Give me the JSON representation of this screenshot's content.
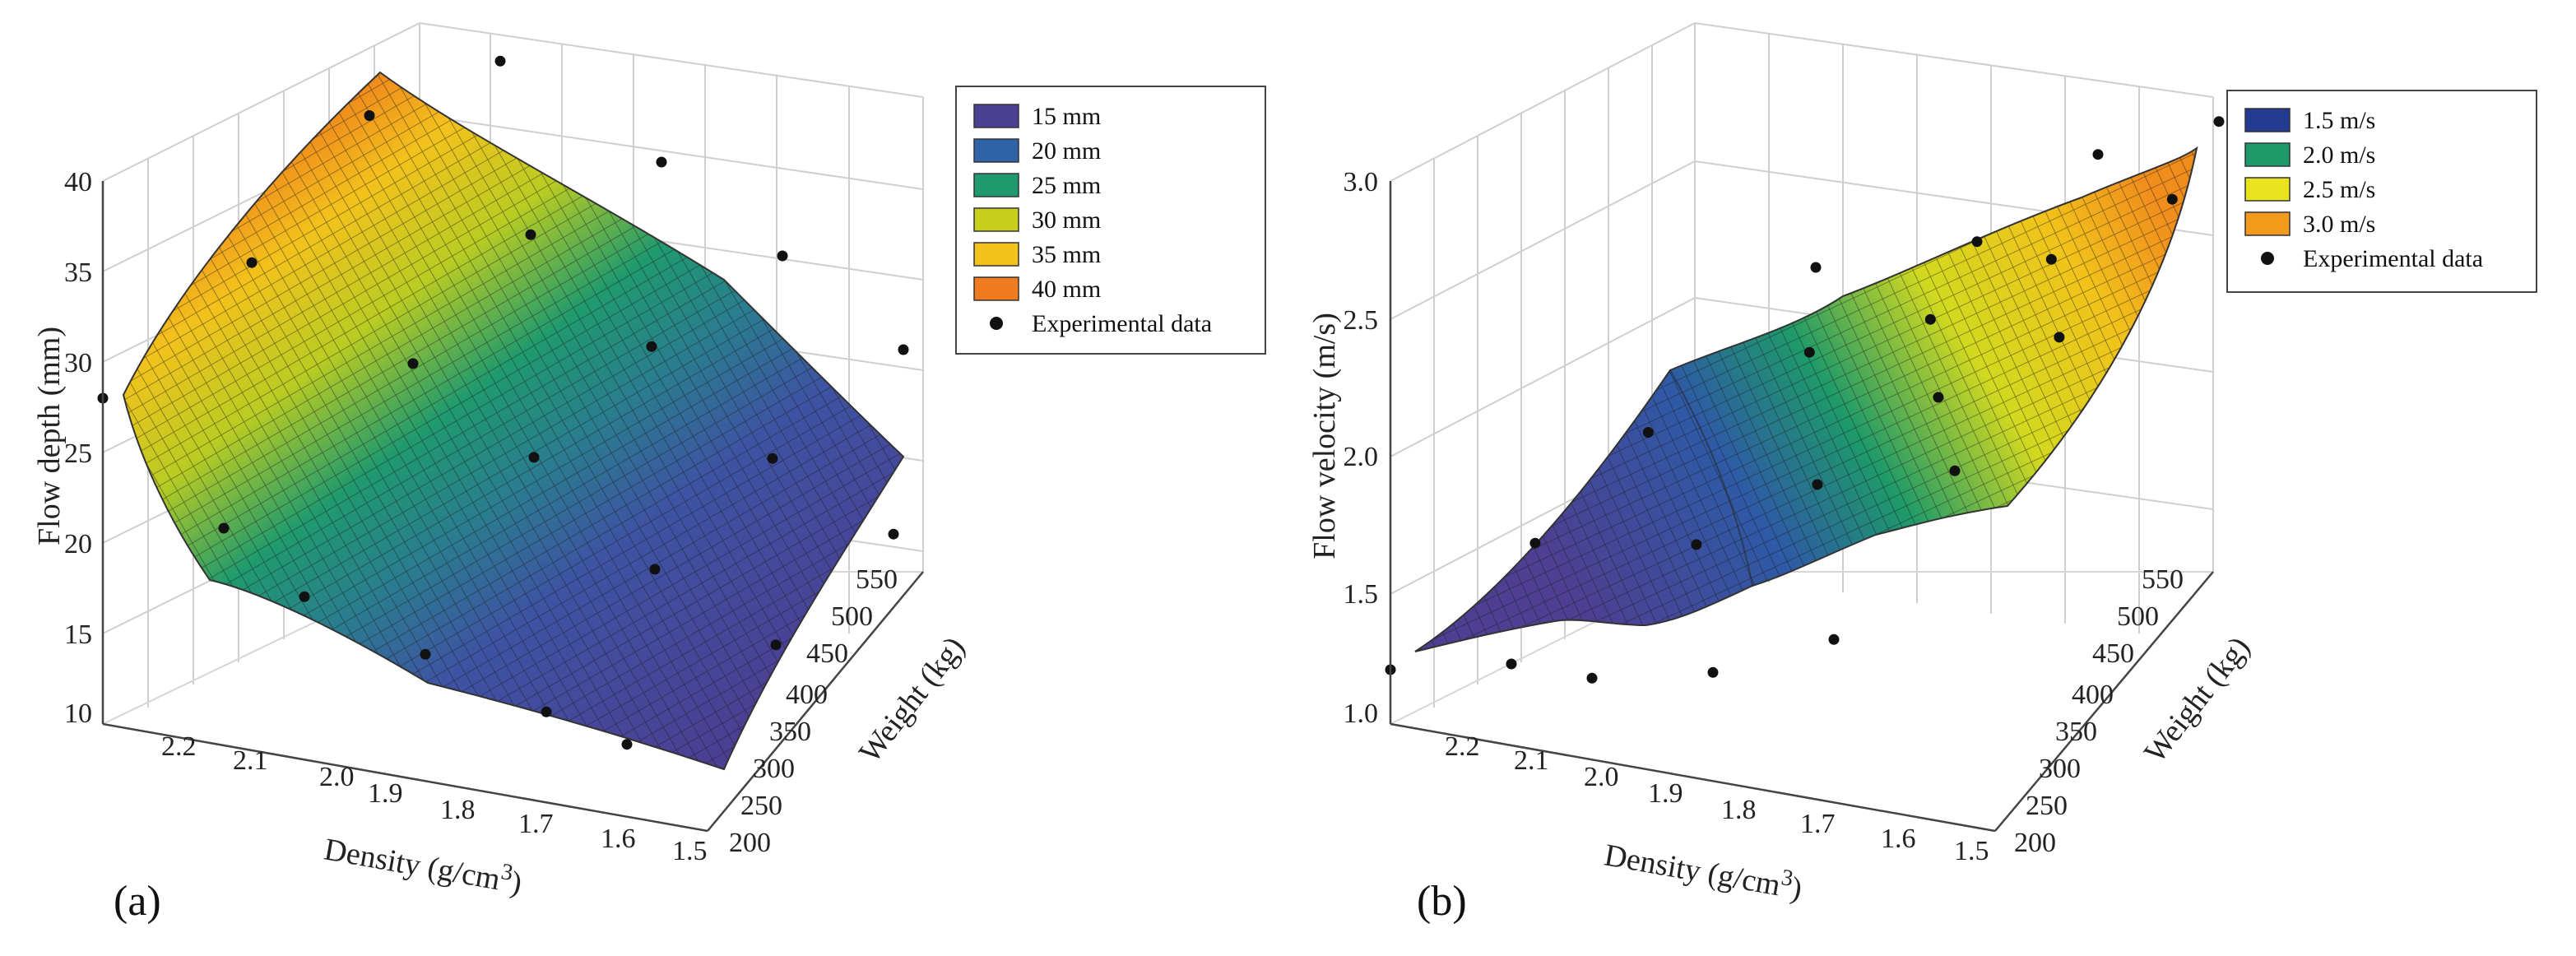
{
  "charts": [
    {
      "id": "a",
      "panel_label": "(a)",
      "legend": [
        {
          "label": "15 mm",
          "color": "#4b3f93"
        },
        {
          "label": "20 mm",
          "color": "#2f62a6"
        },
        {
          "label": "25 mm",
          "color": "#1f9a6e"
        },
        {
          "label": "30 mm",
          "color": "#c8cf1a"
        },
        {
          "label": "35 mm",
          "color": "#f3c21c"
        },
        {
          "label": "40 mm",
          "color": "#f07c1f"
        }
      ],
      "legend_marker_label": "Experimental data"
    },
    {
      "id": "b",
      "panel_label": "(b)",
      "legend": [
        {
          "label": "1.5 m/s",
          "color": "#233b91"
        },
        {
          "label": "2.0 m/s",
          "color": "#1e9a6a"
        },
        {
          "label": "2.5 m/s",
          "color": "#e9e41e"
        },
        {
          "label": "3.0 m/s",
          "color": "#f29a1c"
        }
      ],
      "legend_marker_label": "Experimental data"
    }
  ],
  "chart_data": [
    {
      "type": "surface3d",
      "title": "",
      "zlabel": "Flow depth (mm)",
      "xlabel": "Density (g/cm3)",
      "ylabel": "Weight (kg)",
      "x_ticks": [
        2.2,
        2.1,
        2.0,
        1.9,
        1.8,
        1.7,
        1.6,
        1.5
      ],
      "y_ticks": [
        200,
        250,
        300,
        350,
        400,
        450,
        500,
        550
      ],
      "z_ticks": [
        10,
        15,
        20,
        25,
        30,
        35,
        40
      ],
      "x_range": [
        1.5,
        2.25
      ],
      "y_range": [
        200,
        550
      ],
      "z_range": [
        10,
        40
      ],
      "surface_corners": [
        {
          "density": 2.25,
          "weight": 200,
          "depth": 28
        },
        {
          "density": 1.5,
          "weight": 200,
          "depth": 11
        },
        {
          "density": 2.25,
          "weight": 550,
          "depth": 40
        },
        {
          "density": 1.5,
          "weight": 550,
          "depth": 23
        }
      ],
      "experimental_points": [
        {
          "density": 2.25,
          "weight": 200,
          "depth": 28
        },
        {
          "density": 2.1,
          "weight": 200,
          "depth": 22
        },
        {
          "density": 2.0,
          "weight": 200,
          "depth": 19
        },
        {
          "density": 1.85,
          "weight": 200,
          "depth": 17
        },
        {
          "density": 1.7,
          "weight": 200,
          "depth": 15
        },
        {
          "density": 1.6,
          "weight": 200,
          "depth": 14
        },
        {
          "density": 2.2,
          "weight": 320,
          "depth": 33
        },
        {
          "density": 2.0,
          "weight": 320,
          "depth": 29
        },
        {
          "density": 1.85,
          "weight": 320,
          "depth": 25
        },
        {
          "density": 1.7,
          "weight": 320,
          "depth": 20
        },
        {
          "density": 1.55,
          "weight": 320,
          "depth": 17
        },
        {
          "density": 2.2,
          "weight": 450,
          "depth": 38
        },
        {
          "density": 2.0,
          "weight": 450,
          "depth": 33
        },
        {
          "density": 1.85,
          "weight": 450,
          "depth": 28
        },
        {
          "density": 1.7,
          "weight": 450,
          "depth": 23
        },
        {
          "density": 1.55,
          "weight": 450,
          "depth": 20
        },
        {
          "density": 2.15,
          "weight": 550,
          "depth": 39
        },
        {
          "density": 1.95,
          "weight": 550,
          "depth": 35
        },
        {
          "density": 1.8,
          "weight": 550,
          "depth": 31
        },
        {
          "density": 1.65,
          "weight": 550,
          "depth": 27
        }
      ]
    },
    {
      "type": "surface3d",
      "title": "",
      "zlabel": "Flow velocity (m/s)",
      "xlabel": "Density (g/cm3)",
      "ylabel": "Weight (kg)",
      "x_ticks": [
        2.2,
        2.1,
        2.0,
        1.9,
        1.8,
        1.7,
        1.6,
        1.5
      ],
      "y_ticks": [
        200,
        250,
        300,
        350,
        400,
        450,
        500,
        550
      ],
      "z_ticks": [
        1.0,
        1.5,
        2.0,
        2.5,
        3.0
      ],
      "x_range": [
        1.5,
        2.25
      ],
      "y_range": [
        200,
        550
      ],
      "z_range": [
        1.0,
        3.0
      ],
      "surface_corners": [
        {
          "density": 2.25,
          "weight": 200,
          "velocity": 1.2
        },
        {
          "density": 1.5,
          "weight": 200,
          "velocity": 2.3
        },
        {
          "density": 2.25,
          "weight": 550,
          "velocity": 1.6
        },
        {
          "density": 1.5,
          "weight": 550,
          "velocity": 3.0
        }
      ],
      "experimental_points": [
        {
          "density": 2.25,
          "weight": 200,
          "velocity": 1.2
        },
        {
          "density": 2.1,
          "weight": 200,
          "velocity": 1.3
        },
        {
          "density": 2.0,
          "weight": 200,
          "velocity": 1.3
        },
        {
          "density": 1.85,
          "weight": 200,
          "velocity": 1.4
        },
        {
          "density": 1.7,
          "weight": 200,
          "velocity": 1.6
        },
        {
          "density": 1.55,
          "weight": 200,
          "velocity": 2.3
        },
        {
          "density": 2.2,
          "weight": 320,
          "velocity": 1.5
        },
        {
          "density": 2.0,
          "weight": 320,
          "velocity": 1.6
        },
        {
          "density": 1.85,
          "weight": 320,
          "velocity": 1.9
        },
        {
          "density": 1.7,
          "weight": 320,
          "velocity": 2.3
        },
        {
          "density": 1.55,
          "weight": 320,
          "velocity": 2.6
        },
        {
          "density": 2.2,
          "weight": 450,
          "velocity": 1.7
        },
        {
          "density": 2.0,
          "weight": 450,
          "velocity": 2.1
        },
        {
          "density": 1.85,
          "weight": 450,
          "velocity": 2.3
        },
        {
          "density": 1.7,
          "weight": 450,
          "velocity": 2.6
        },
        {
          "density": 1.55,
          "weight": 450,
          "velocity": 2.9
        },
        {
          "density": 2.1,
          "weight": 550,
          "velocity": 2.2
        },
        {
          "density": 1.9,
          "weight": 550,
          "velocity": 2.4
        },
        {
          "density": 1.75,
          "weight": 550,
          "velocity": 2.8
        },
        {
          "density": 1.6,
          "weight": 550,
          "velocity": 3.0
        }
      ]
    }
  ]
}
